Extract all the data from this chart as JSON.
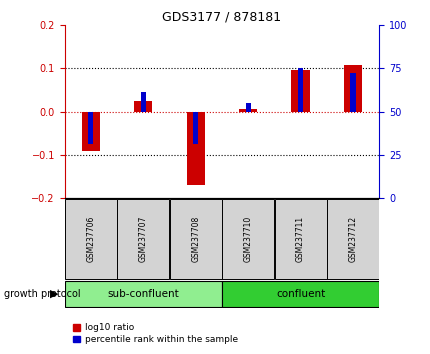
{
  "title": "GDS3177 / 878181",
  "samples": [
    "GSM237706",
    "GSM237707",
    "GSM237708",
    "GSM237710",
    "GSM237711",
    "GSM237712"
  ],
  "log10_ratio": [
    -0.09,
    0.025,
    -0.17,
    0.005,
    0.095,
    0.108
  ],
  "percentile_rank": [
    31,
    61,
    31,
    55,
    75,
    72
  ],
  "ylim_left": [
    -0.2,
    0.2
  ],
  "ylim_right": [
    0,
    100
  ],
  "yticks_left": [
    -0.2,
    -0.1,
    0.0,
    0.1,
    0.2
  ],
  "yticks_right": [
    0,
    25,
    50,
    75,
    100
  ],
  "bar_color": "#cc0000",
  "percentile_color": "#0000cc",
  "groups": [
    {
      "label": "sub-confluent",
      "indices": [
        0,
        1,
        2
      ],
      "color": "#90ee90"
    },
    {
      "label": "confluent",
      "indices": [
        3,
        4,
        5
      ],
      "color": "#32cd32"
    }
  ],
  "group_label": "growth protocol",
  "legend_items": [
    {
      "label": "log10 ratio",
      "color": "#cc0000"
    },
    {
      "label": "percentile rank within the sample",
      "color": "#0000cc"
    }
  ],
  "left_axis_color": "#cc0000",
  "right_axis_color": "#0000cc",
  "zero_line_color": "#cc0000",
  "bar_width": 0.35,
  "percentile_bar_width": 0.1
}
